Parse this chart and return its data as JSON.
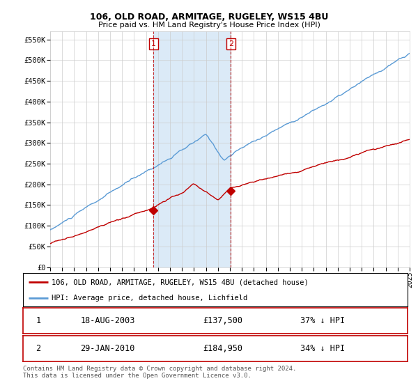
{
  "title": "106, OLD ROAD, ARMITAGE, RUGELEY, WS15 4BU",
  "subtitle": "Price paid vs. HM Land Registry's House Price Index (HPI)",
  "ylabel_ticks": [
    "£0",
    "£50K",
    "£100K",
    "£150K",
    "£200K",
    "£250K",
    "£300K",
    "£350K",
    "£400K",
    "£450K",
    "£500K",
    "£550K"
  ],
  "ytick_values": [
    0,
    50000,
    100000,
    150000,
    200000,
    250000,
    300000,
    350000,
    400000,
    450000,
    500000,
    550000
  ],
  "ylim": [
    0,
    570000
  ],
  "hpi_color": "#5b9bd5",
  "hpi_fill_color": "#dbeaf7",
  "price_color": "#c00000",
  "sale1_date": "18-AUG-2003",
  "sale1_price": 137500,
  "sale1_pct": "37%",
  "sale1_year": 2003.62,
  "sale2_date": "29-JAN-2010",
  "sale2_price": 184950,
  "sale2_pct": "34%",
  "sale2_year": 2010.08,
  "legend_label1": "106, OLD ROAD, ARMITAGE, RUGELEY, WS15 4BU (detached house)",
  "legend_label2": "HPI: Average price, detached house, Lichfield",
  "footer": "Contains HM Land Registry data © Crown copyright and database right 2024.\nThis data is licensed under the Open Government Licence v3.0.",
  "background_color": "#ffffff",
  "grid_color": "#cccccc",
  "xlim_start": 1995,
  "xlim_end": 2025
}
